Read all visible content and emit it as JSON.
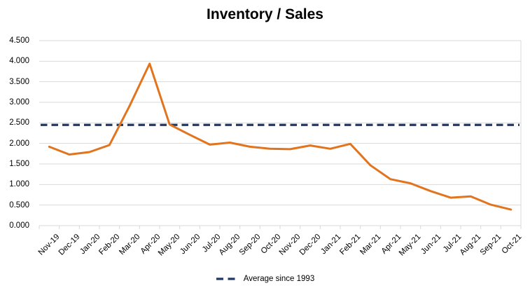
{
  "chart_data": {
    "type": "line",
    "title": "Inventory / Sales",
    "categories": [
      "Nov-19",
      "Dec-19",
      "Jan-20",
      "Feb-20",
      "Mar-20",
      "Apr-20",
      "May-20",
      "Jun-20",
      "Jul-20",
      "Aug-20",
      "Sep-20",
      "Oct-20",
      "Nov-20",
      "Dec-20",
      "Jan-21",
      "Feb-21",
      "Mar-21",
      "Apr-21",
      "May-21",
      "Jun-21",
      "Jul-21",
      "Aug-21",
      "Sep-21",
      "Oct-21"
    ],
    "series": [
      {
        "name": "Inventory / Sales",
        "type": "line",
        "style": "solid",
        "color": "#E2741E",
        "values": [
          1.92,
          1.73,
          1.79,
          1.96,
          2.91,
          3.94,
          2.46,
          2.21,
          1.97,
          2.02,
          1.92,
          1.87,
          1.86,
          1.95,
          1.87,
          1.99,
          1.47,
          1.13,
          1.03,
          0.84,
          0.68,
          0.71,
          0.51,
          0.39
        ]
      },
      {
        "name": "Average since 1993",
        "type": "horizontal-reference-line",
        "style": "dashed",
        "color": "#1F3864",
        "value": 2.45
      }
    ],
    "xlabel": "",
    "ylabel": "",
    "ylim": [
      0,
      4.5
    ],
    "ytick_labels": [
      "0.000",
      "0.500",
      "1.000",
      "1.500",
      "2.000",
      "2.500",
      "3.000",
      "3.500",
      "4.000",
      "4.500"
    ],
    "grid": true,
    "legend_position": "bottom",
    "legend_entries": [
      "Average since 1993"
    ]
  },
  "colors": {
    "series_line": "#E2741E",
    "average_line": "#1F3864",
    "gridline": "#D9D9D9",
    "text": "#000000",
    "background": "#FFFFFF"
  }
}
